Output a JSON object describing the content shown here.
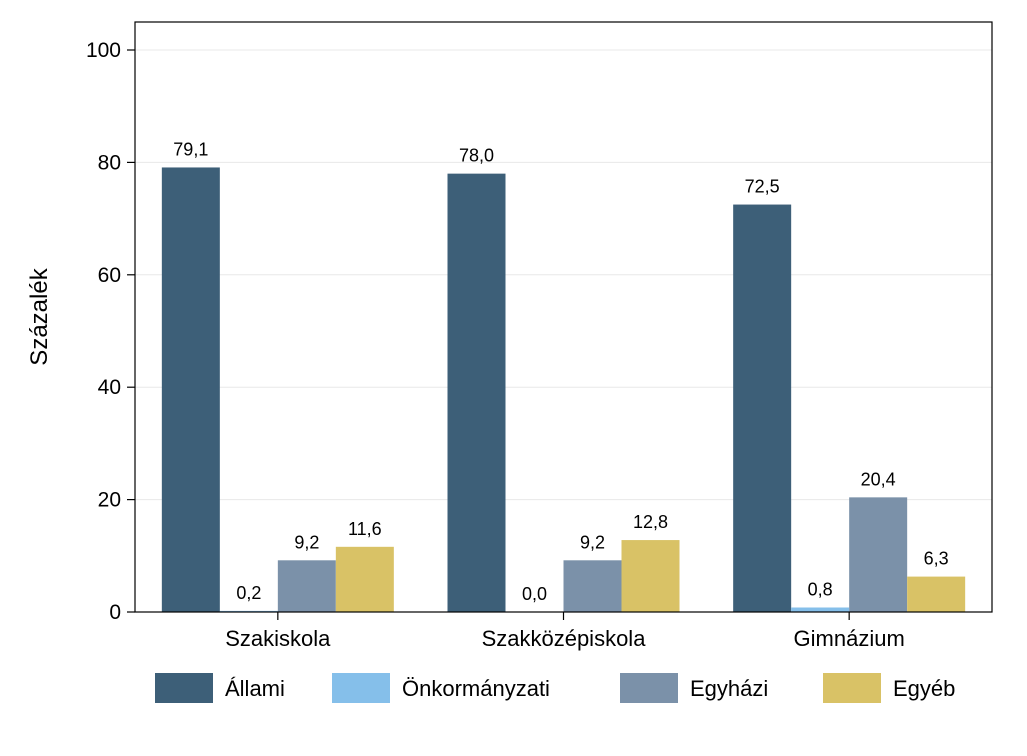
{
  "chart_data": {
    "type": "bar",
    "ylabel": "Százalék",
    "xlabel": "",
    "ylim": [
      0,
      100
    ],
    "yticks": [
      0,
      20,
      40,
      60,
      80,
      100
    ],
    "grid": true,
    "legend_position": "bottom",
    "categories": [
      "Szakiskola",
      "Szakközépiskola",
      "Gimnázium"
    ],
    "series": [
      {
        "name": "Állami",
        "color": "#3d5f78",
        "values": [
          79.1,
          78.0,
          72.5
        ],
        "labels": [
          "79,1",
          "78,0",
          "72,5"
        ]
      },
      {
        "name": "Önkormányzati",
        "color": "#85bfea",
        "values": [
          0.2,
          0.0,
          0.8
        ],
        "labels": [
          "0,2",
          "0,0",
          "0,8"
        ]
      },
      {
        "name": "Egyházi",
        "color": "#7b91a9",
        "values": [
          9.2,
          9.2,
          20.4
        ],
        "labels": [
          "9,2",
          "9,2",
          "20,4"
        ]
      },
      {
        "name": "Egyéb",
        "color": "#d9c266",
        "values": [
          11.6,
          12.8,
          6.3
        ],
        "labels": [
          "11,6",
          "12,8",
          "6,3"
        ]
      }
    ]
  }
}
